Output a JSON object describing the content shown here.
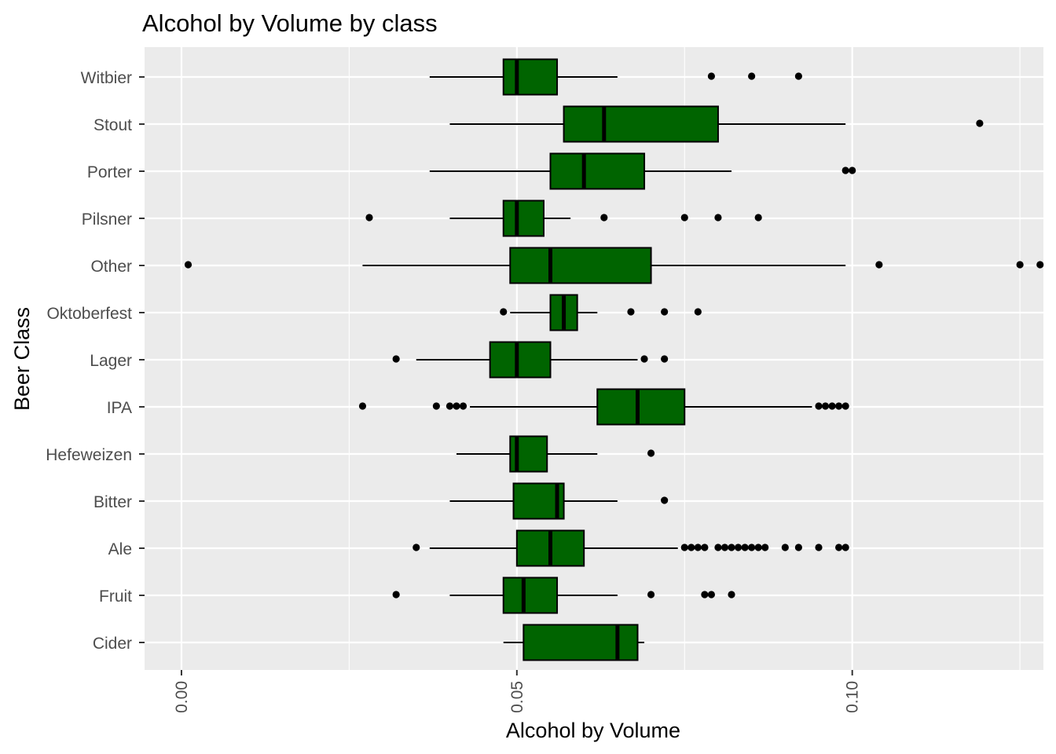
{
  "chart_data": {
    "type": "boxplot",
    "title": "Alcohol by Volume by class",
    "xlabel": "Alcohol by Volume",
    "ylabel": "Beer Class",
    "xlim": [
      -0.0055,
      0.1285
    ],
    "x_ticks": [
      0.0,
      0.05,
      0.1
    ],
    "x_tick_labels": [
      "0.00",
      "0.05",
      "0.10"
    ],
    "x_minor_ticks": [
      0.025,
      0.075,
      0.125
    ],
    "orientation": "horizontal",
    "grid": true,
    "colors": {
      "panel": "#EBEBEB",
      "grid": "#FFFFFF",
      "box_fill": "#006400",
      "line": "#000000",
      "tick_label": "#4D4D4D"
    },
    "categories": [
      "Witbier",
      "Stout",
      "Porter",
      "Pilsner",
      "Other",
      "Oktoberfest",
      "Lager",
      "IPA",
      "Hefeweizen",
      "Bitter",
      "Ale",
      "Fruit",
      "Cider"
    ],
    "boxes": [
      {
        "name": "Witbier",
        "whisker_low": 0.037,
        "q1": 0.048,
        "median": 0.05,
        "q3": 0.056,
        "whisker_high": 0.065,
        "outliers": [
          0.079,
          0.085,
          0.092
        ]
      },
      {
        "name": "Stout",
        "whisker_low": 0.04,
        "q1": 0.057,
        "median": 0.063,
        "q3": 0.08,
        "whisker_high": 0.099,
        "outliers": [
          0.119
        ]
      },
      {
        "name": "Porter",
        "whisker_low": 0.037,
        "q1": 0.055,
        "median": 0.06,
        "q3": 0.069,
        "whisker_high": 0.082,
        "outliers": [
          0.099,
          0.1
        ]
      },
      {
        "name": "Pilsner",
        "whisker_low": 0.04,
        "q1": 0.048,
        "median": 0.05,
        "q3": 0.054,
        "whisker_high": 0.058,
        "outliers": [
          0.028,
          0.063,
          0.075,
          0.08,
          0.086
        ]
      },
      {
        "name": "Other",
        "whisker_low": 0.027,
        "q1": 0.049,
        "median": 0.055,
        "q3": 0.07,
        "whisker_high": 0.099,
        "outliers": [
          0.001,
          0.104,
          0.125,
          0.128
        ]
      },
      {
        "name": "Oktoberfest",
        "whisker_low": 0.049,
        "q1": 0.055,
        "median": 0.057,
        "q3": 0.059,
        "whisker_high": 0.062,
        "outliers": [
          0.048,
          0.067,
          0.072,
          0.077
        ]
      },
      {
        "name": "Lager",
        "whisker_low": 0.035,
        "q1": 0.046,
        "median": 0.05,
        "q3": 0.055,
        "whisker_high": 0.068,
        "outliers": [
          0.032,
          0.069,
          0.072
        ]
      },
      {
        "name": "IPA",
        "whisker_low": 0.043,
        "q1": 0.062,
        "median": 0.068,
        "q3": 0.075,
        "whisker_high": 0.094,
        "outliers": [
          0.027,
          0.038,
          0.04,
          0.041,
          0.042,
          0.095,
          0.096,
          0.097,
          0.098,
          0.099
        ]
      },
      {
        "name": "Hefeweizen",
        "whisker_low": 0.041,
        "q1": 0.049,
        "median": 0.05,
        "q3": 0.0545,
        "whisker_high": 0.062,
        "outliers": [
          0.07
        ]
      },
      {
        "name": "Bitter",
        "whisker_low": 0.04,
        "q1": 0.0495,
        "median": 0.056,
        "q3": 0.057,
        "whisker_high": 0.065,
        "outliers": [
          0.072
        ]
      },
      {
        "name": "Ale",
        "whisker_low": 0.037,
        "q1": 0.05,
        "median": 0.055,
        "q3": 0.06,
        "whisker_high": 0.074,
        "outliers": [
          0.035,
          0.075,
          0.076,
          0.077,
          0.078,
          0.08,
          0.081,
          0.082,
          0.083,
          0.084,
          0.085,
          0.086,
          0.087,
          0.09,
          0.092,
          0.095,
          0.098,
          0.099
        ]
      },
      {
        "name": "Fruit",
        "whisker_low": 0.04,
        "q1": 0.048,
        "median": 0.051,
        "q3": 0.056,
        "whisker_high": 0.065,
        "outliers": [
          0.032,
          0.07,
          0.078,
          0.079,
          0.082
        ]
      },
      {
        "name": "Cider",
        "whisker_low": 0.048,
        "q1": 0.051,
        "median": 0.065,
        "q3": 0.068,
        "whisker_high": 0.069,
        "outliers": []
      }
    ]
  }
}
